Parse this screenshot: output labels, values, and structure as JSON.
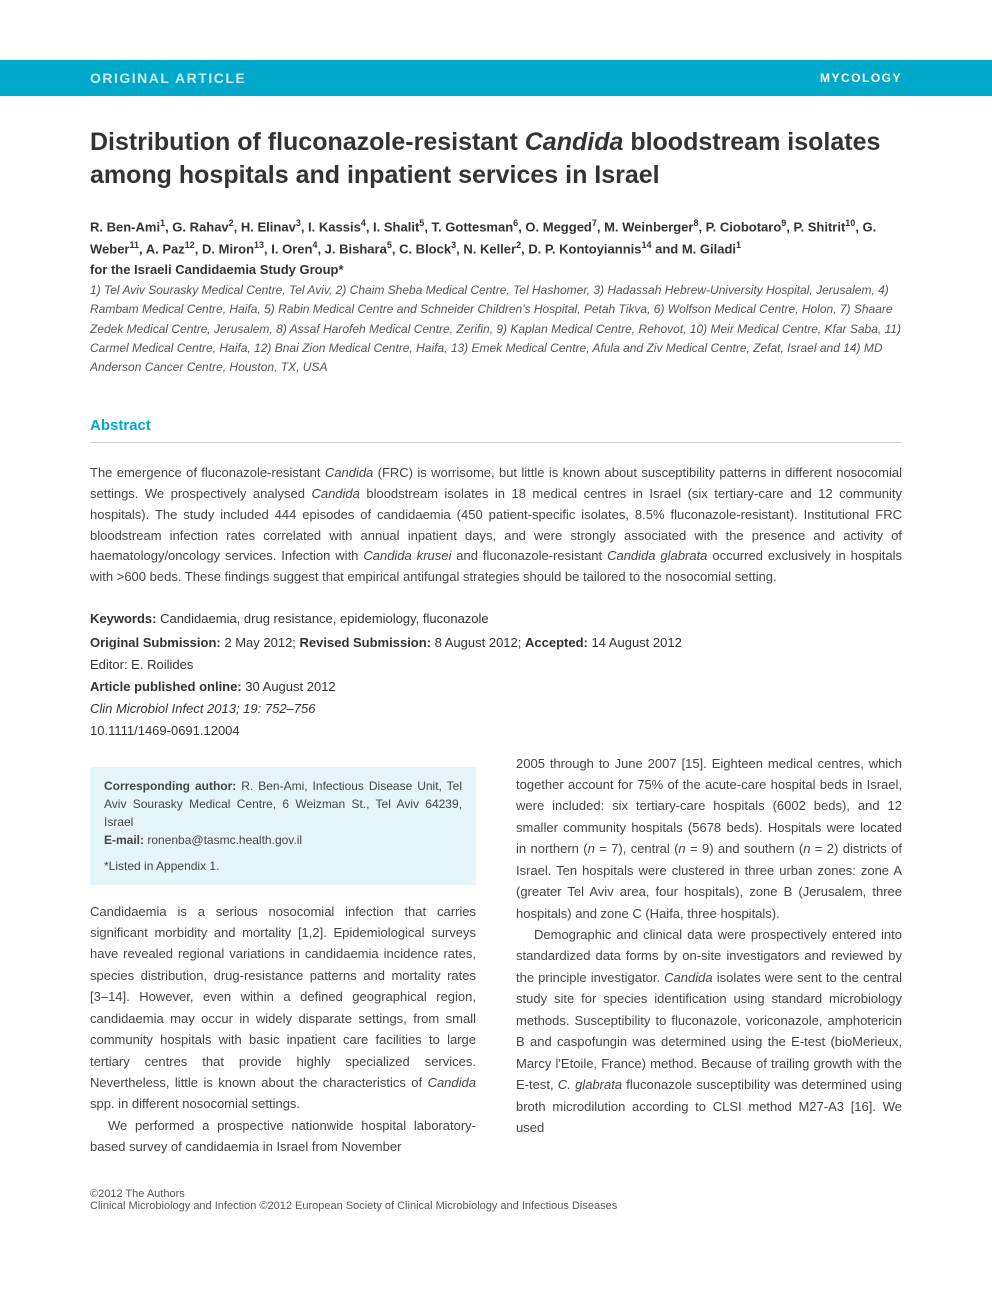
{
  "header": {
    "left": "ORIGINAL ARTICLE",
    "right": "MYCOLOGY"
  },
  "title": {
    "part1": "Distribution of fluconazole-resistant ",
    "italic": "Candida",
    "part2": " bloodstream isolates among hospitals and inpatient services in Israel"
  },
  "authors_html": "R. Ben-Ami<sup>1</sup>, G. Rahav<sup>2</sup>, H. Elinav<sup>3</sup>, I. Kassis<sup>4</sup>, I. Shalit<sup>5</sup>, T. Gottesman<sup>6</sup>, O. Megged<sup>7</sup>, M. Weinberger<sup>8</sup>, P. Ciobotaro<sup>9</sup>, P. Shitrit<sup>10</sup>, G. Weber<sup>11</sup>, A. Paz<sup>12</sup>, D. Miron<sup>13</sup>, I. Oren<sup>4</sup>, J. Bishara<sup>5</sup>, C. Block<sup>3</sup>, N. Keller<sup>2</sup>, D. P. Kontoyiannis<sup>14</sup> and M. Giladi<sup>1</sup>",
  "group": "for the Israeli Candidaemia Study Group*",
  "affiliations": "1) Tel Aviv Sourasky Medical Centre, Tel Aviv, 2) Chaim Sheba Medical Centre, Tel Hashomer, 3) Hadassah Hebrew-University Hospital, Jerusalem, 4) Rambam Medical Centre, Haifa, 5) Rabin Medical Centre and Schneider Children's Hospital, Petah Tikva, 6) Wolfson Medical Centre, Holon, 7) Shaare Zedek Medical Centre, Jerusalem, 8) Assaf Harofeh Medical Centre, Zerifin, 9) Kaplan Medical Centre, Rehovot, 10) Meir Medical Centre, Kfar Saba, 11) Carmel Medical Centre, Haifa, 12) Bnai Zion Medical Centre, Haifa, 13) Emek Medical Centre, Afula and Ziv Medical Centre, Zefat, Israel and 14) MD Anderson Cancer Centre, Houston, TX, USA",
  "abstract_label": "Abstract",
  "abstract_html": "The emergence of fluconazole-resistant <span class=\"ital\">Candida</span> (FRC) is worrisome, but little is known about susceptibility patterns in different nosocomial settings. We prospectively analysed <span class=\"ital\">Candida</span> bloodstream isolates in 18 medical centres in Israel (six tertiary-care and 12 community hospitals). The study included 444 episodes of candidaemia (450 patient-specific isolates, 8.5% fluconazole-resistant). Institutional FRC bloodstream infection rates correlated with annual inpatient days, and were strongly associated with the presence and activity of haematology/oncology services. Infection with <span class=\"ital\">Candida krusei</span> and fluconazole-resistant <span class=\"ital\">Candida glabrata</span> occurred exclusively in hospitals with >600 beds. These findings suggest that empirical antifungal strategies should be tailored to the nosocomial setting.",
  "keywords": {
    "label": "Keywords:",
    "text": " Candidaemia, drug resistance, epidemiology, fluconazole"
  },
  "submission": {
    "orig_label": "Original Submission:",
    "orig_date": " 2 May 2012; ",
    "rev_label": "Revised Submission:",
    "rev_date": " 8 August 2012; ",
    "acc_label": "Accepted:",
    "acc_date": " 14 August 2012"
  },
  "editor": "Editor: E. Roilides",
  "pub_online": {
    "label": "Article published online:",
    "date": " 30 August 2012"
  },
  "journal": "Clin Microbiol Infect 2013; 19: 752–756",
  "doi": "10.1111/1469-0691.12004",
  "corresponding": {
    "label": "Corresponding author:",
    "text": " R. Ben-Ami, Infectious Disease Unit, Tel Aviv Sourasky Medical Centre, 6 Weizman St., Tel Aviv 64239, Israel",
    "email_label": "E-mail:",
    "email": " ronenba@tasmc.health.gov.il",
    "note": "*Listed in Appendix 1."
  },
  "body": {
    "left_p1": "Candidaemia is a serious nosocomial infection that carries significant morbidity and mortality [1,2]. Epidemiological surveys have revealed regional variations in candidaemia incidence rates, species distribution, drug-resistance patterns and mortality rates [3–14]. However, even within a defined geographical region, candidaemia may occur in widely disparate settings, from small community hospitals with basic inpatient care facilities to large tertiary centres that provide highly specialized services. Nevertheless, little is known about the characteristics of ",
    "left_p1_ital": "Candida",
    "left_p1_cont": " spp. in different nosocomial settings.",
    "left_p2": "We performed a prospective nationwide hospital laboratory-based survey of candidaemia in Israel from November",
    "right_p1": "2005 through to June 2007 [15]. Eighteen medical centres, which together account for 75% of the acute-care hospital beds in Israel, were included: six tertiary-care hospitals (6002 beds), and 12 smaller community hospitals (5678 beds). Hospitals were located in northern (",
    "right_p1_n1_ital": "n",
    "right_p1_n1": " = 7), central (",
    "right_p1_n2_ital": "n",
    "right_p1_n2": " = 9) and southern (",
    "right_p1_n3_ital": "n",
    "right_p1_n3": " = 2) districts of Israel. Ten hospitals were clustered in three urban zones: zone A (greater Tel Aviv area, four hospitals), zone B (Jerusalem, three hospitals) and zone C (Haifa, three hospitals).",
    "right_p2": "Demographic and clinical data were prospectively entered into standardized data forms by on-site investigators and reviewed by the principle investigator. ",
    "right_p2_ital": "Candida",
    "right_p2_cont": " isolates were sent to the central study site for species identification using standard microbiology methods. Susceptibility to fluconazole, voriconazole, amphotericin B and caspofungin was determined using the E-test (bioMerieux, Marcy l'Etoile, France) method. Because of trailing growth with the E-test, ",
    "right_p2_ital2": "C. glabrata",
    "right_p2_cont2": " fluconazole susceptibility was determined using broth microdilution according to CLSI method M27-A3 [16]. We used"
  },
  "footer": {
    "line1": "©2012 The Authors",
    "line2": "Clinical Microbiology and Infection ©2012 European Society of Clinical Microbiology and Infectious Diseases"
  },
  "colors": {
    "brand": "#00a9c9",
    "pale_brand": "#e4f5f9",
    "header_left": "#c9ecf3",
    "text": "#333333",
    "muted": "#555555"
  }
}
